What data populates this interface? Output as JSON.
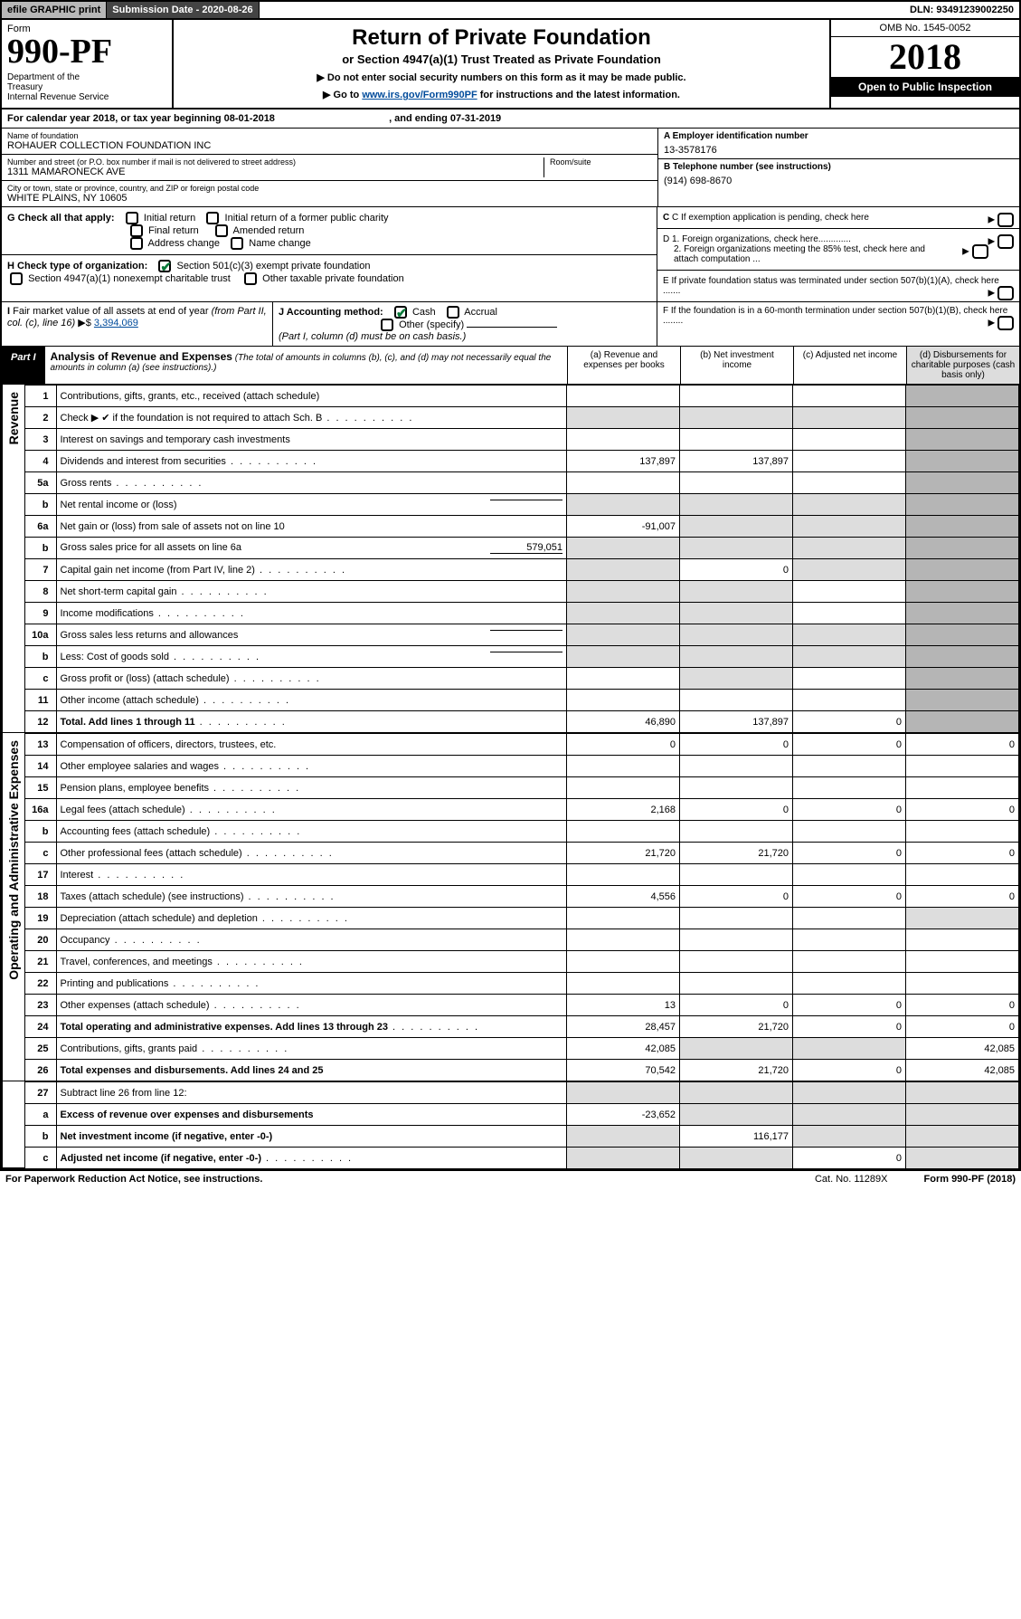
{
  "topbar": {
    "efile": "efile GRAPHIC print",
    "subdate_label": "Submission Date - ",
    "subdate": "2020-08-26",
    "dln_label": "DLN: ",
    "dln": "93491239002250"
  },
  "header": {
    "form_word": "Form",
    "form_no": "990-PF",
    "dept": "Department of the Treasury\nInternal Revenue Service",
    "title": "Return of Private Foundation",
    "subtitle": "or Section 4947(a)(1) Trust Treated as Private Foundation",
    "note1": "▶ Do not enter social security numbers on this form as it may be made public.",
    "note2_pre": "▶ Go to ",
    "note2_link": "www.irs.gov/Form990PF",
    "note2_post": " for instructions and the latest information.",
    "omb": "OMB No. 1545-0052",
    "year": "2018",
    "open": "Open to Public Inspection"
  },
  "calyear": {
    "pre": "For calendar year 2018, or tax year beginning ",
    "begin": "08-01-2018",
    "mid": " , and ending ",
    "end": "07-31-2019"
  },
  "entity": {
    "name_label": "Name of foundation",
    "name": "ROHAUER COLLECTION FOUNDATION INC",
    "addr_label": "Number and street (or P.O. box number if mail is not delivered to street address)",
    "addr": "1311 MAMARONECK AVE",
    "room_label": "Room/suite",
    "room": "",
    "city_label": "City or town, state or province, country, and ZIP or foreign postal code",
    "city": "WHITE PLAINS, NY  10605",
    "ein_label": "A Employer identification number",
    "ein": "13-3578176",
    "phone_label": "B Telephone number (see instructions)",
    "phone": "(914) 698-8670",
    "c_label": "C If exemption application is pending, check here",
    "d1": "D 1. Foreign organizations, check here.............",
    "d2": "2. Foreign organizations meeting the 85% test, check here and attach computation ...",
    "e": "E  If private foundation status was terminated under section 507(b)(1)(A), check here .......",
    "f": "F  If the foundation is in a 60-month termination under section 507(b)(1)(B), check here ........"
  },
  "g": {
    "label": "G Check all that apply:",
    "opts": [
      "Initial return",
      "Initial return of a former public charity",
      "Final return",
      "Amended return",
      "Address change",
      "Name change"
    ]
  },
  "h": {
    "label": "H Check type of organization:",
    "o1": "Section 501(c)(3) exempt private foundation",
    "o2": "Section 4947(a)(1) nonexempt charitable trust",
    "o3": "Other taxable private foundation"
  },
  "i": {
    "label": "I Fair market value of all assets at end of year (from Part II, col. (c), line 16) ▶$ ",
    "val": "3,394,069"
  },
  "j": {
    "label": "J Accounting method:",
    "cash": "Cash",
    "accrual": "Accrual",
    "other": "Other (specify)",
    "note": "(Part I, column (d) must be on cash basis.)"
  },
  "part1": {
    "tag": "Part I",
    "title": "Analysis of Revenue and Expenses",
    "note": "(The total of amounts in columns (b), (c), and (d) may not necessarily equal the amounts in column (a) (see instructions).)",
    "cols": {
      "a": "(a)   Revenue and expenses per books",
      "b": "(b)   Net investment income",
      "c": "(c)   Adjusted net income",
      "d": "(d)   Disbursements for charitable purposes (cash basis only)"
    }
  },
  "side_rev": "Revenue",
  "side_exp": "Operating and Administrative Expenses",
  "rows": [
    {
      "n": "1",
      "d": "Contributions, gifts, grants, etc., received (attach schedule)",
      "a": "",
      "b": "",
      "c": "",
      "dg": true
    },
    {
      "n": "2",
      "d": "Check ▶ ✔ if the foundation is not required to attach Sch. B",
      "dots": true,
      "a": "",
      "b": "",
      "c": "",
      "dg": true,
      "allgrey": true
    },
    {
      "n": "3",
      "d": "Interest on savings and temporary cash investments",
      "a": "",
      "b": "",
      "c": "",
      "dg": true
    },
    {
      "n": "4",
      "d": "Dividends and interest from securities",
      "dots": true,
      "a": "137,897",
      "b": "137,897",
      "c": "",
      "dg": true
    },
    {
      "n": "5a",
      "d": "Gross rents",
      "dots": true,
      "a": "",
      "b": "",
      "c": "",
      "dg": true
    },
    {
      "n": "b",
      "d": "Net rental income or (loss)",
      "inline": "",
      "a": "",
      "b": "",
      "c": "",
      "dg": true,
      "greyABC": true
    },
    {
      "n": "6a",
      "d": "Net gain or (loss) from sale of assets not on line 10",
      "a": "-91,007",
      "b": "",
      "c": "",
      "dg": true,
      "greyBC": true
    },
    {
      "n": "b",
      "d": "Gross sales price for all assets on line 6a",
      "inline": "579,051",
      "a": "",
      "b": "",
      "c": "",
      "dg": true,
      "greyABC": true
    },
    {
      "n": "7",
      "d": "Capital gain net income (from Part IV, line 2)",
      "dots": true,
      "a": "",
      "b": "0",
      "c": "",
      "dg": true,
      "greyA": true,
      "greyC": true
    },
    {
      "n": "8",
      "d": "Net short-term capital gain",
      "dots": true,
      "a": "",
      "b": "",
      "c": "",
      "dg": true,
      "greyA": true,
      "greyB": true
    },
    {
      "n": "9",
      "d": "Income modifications",
      "dots": true,
      "a": "",
      "b": "",
      "c": "",
      "dg": true,
      "greyA": true,
      "greyB": true
    },
    {
      "n": "10a",
      "d": "Gross sales less returns and allowances",
      "inline": "",
      "a": "",
      "b": "",
      "c": "",
      "dg": true,
      "greyABC": true
    },
    {
      "n": "b",
      "d": "Less: Cost of goods sold",
      "dots": true,
      "inline": "",
      "a": "",
      "b": "",
      "c": "",
      "dg": true,
      "greyABC": true
    },
    {
      "n": "c",
      "d": "Gross profit or (loss) (attach schedule)",
      "dots": true,
      "a": "",
      "b": "",
      "c": "",
      "dg": true,
      "greyB": true
    },
    {
      "n": "11",
      "d": "Other income (attach schedule)",
      "dots": true,
      "a": "",
      "b": "",
      "c": "",
      "dg": true
    },
    {
      "n": "12",
      "d": "Total. Add lines 1 through 11",
      "dots": true,
      "bold": true,
      "a": "46,890",
      "b": "137,897",
      "c": "0",
      "dg": true
    }
  ],
  "rows2": [
    {
      "n": "13",
      "d": "Compensation of officers, directors, trustees, etc.",
      "a": "0",
      "b": "0",
      "c": "0",
      "dd": "0"
    },
    {
      "n": "14",
      "d": "Other employee salaries and wages",
      "dots": true,
      "a": "",
      "b": "",
      "c": "",
      "dd": ""
    },
    {
      "n": "15",
      "d": "Pension plans, employee benefits",
      "dots": true,
      "a": "",
      "b": "",
      "c": "",
      "dd": ""
    },
    {
      "n": "16a",
      "d": "Legal fees (attach schedule)",
      "dots": true,
      "a": "2,168",
      "b": "0",
      "c": "0",
      "dd": "0"
    },
    {
      "n": "b",
      "d": "Accounting fees (attach schedule)",
      "dots": true,
      "a": "",
      "b": "",
      "c": "",
      "dd": ""
    },
    {
      "n": "c",
      "d": "Other professional fees (attach schedule)",
      "dots": true,
      "a": "21,720",
      "b": "21,720",
      "c": "0",
      "dd": "0"
    },
    {
      "n": "17",
      "d": "Interest",
      "dots": true,
      "a": "",
      "b": "",
      "c": "",
      "dd": ""
    },
    {
      "n": "18",
      "d": "Taxes (attach schedule) (see instructions)",
      "dots": true,
      "a": "4,556",
      "b": "0",
      "c": "0",
      "dd": "0"
    },
    {
      "n": "19",
      "d": "Depreciation (attach schedule) and depletion",
      "dots": true,
      "a": "",
      "b": "",
      "c": "",
      "dd": "",
      "dgrey": true
    },
    {
      "n": "20",
      "d": "Occupancy",
      "dots": true,
      "a": "",
      "b": "",
      "c": "",
      "dd": ""
    },
    {
      "n": "21",
      "d": "Travel, conferences, and meetings",
      "dots": true,
      "a": "",
      "b": "",
      "c": "",
      "dd": ""
    },
    {
      "n": "22",
      "d": "Printing and publications",
      "dots": true,
      "a": "",
      "b": "",
      "c": "",
      "dd": ""
    },
    {
      "n": "23",
      "d": "Other expenses (attach schedule)",
      "dots": true,
      "a": "13",
      "b": "0",
      "c": "0",
      "dd": "0"
    },
    {
      "n": "24",
      "d": "Total operating and administrative expenses. Add lines 13 through 23",
      "dots": true,
      "bold": true,
      "a": "28,457",
      "b": "21,720",
      "c": "0",
      "dd": "0"
    },
    {
      "n": "25",
      "d": "Contributions, gifts, grants paid",
      "dots": true,
      "a": "42,085",
      "b": "",
      "c": "",
      "dd": "42,085",
      "greyBC": true
    },
    {
      "n": "26",
      "d": "Total expenses and disbursements. Add lines 24 and 25",
      "bold": true,
      "a": "70,542",
      "b": "21,720",
      "c": "0",
      "dd": "42,085"
    }
  ],
  "rows3": [
    {
      "n": "27",
      "d": "Subtract line 26 from line 12:",
      "a": "",
      "b": "",
      "c": "",
      "dd": "",
      "greyall": true
    },
    {
      "n": "a",
      "d": "Excess of revenue over expenses and disbursements",
      "bold": true,
      "a": "-23,652",
      "b": "",
      "c": "",
      "dd": "",
      "greyBCD": true
    },
    {
      "n": "b",
      "d": "Net investment income (if negative, enter -0-)",
      "bold": true,
      "a": "",
      "b": "116,177",
      "c": "",
      "dd": "",
      "greyA": true,
      "greyCD": true
    },
    {
      "n": "c",
      "d": "Adjusted net income (if negative, enter -0-)",
      "bold": true,
      "dots": true,
      "a": "",
      "b": "",
      "c": "0",
      "dd": "",
      "greyA": true,
      "greyB": true,
      "greyD": true
    }
  ],
  "footer": {
    "left": "For Paperwork Reduction Act Notice, see instructions.",
    "mid": "Cat. No. 11289X",
    "right": "Form 990-PF (2018)"
  }
}
